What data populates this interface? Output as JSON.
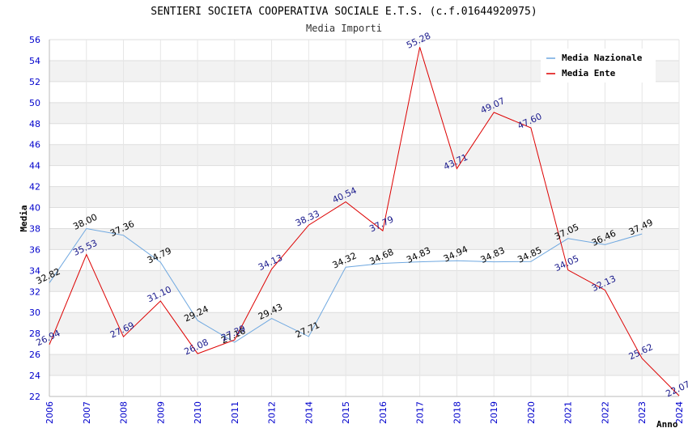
{
  "chart_data": {
    "type": "line",
    "title": "SENTIERI SOCIETA COOPERATIVA SOCIALE E.T.S. (c.f.01644920975)",
    "subtitle": "Media Importi",
    "xlabel": "Anno",
    "ylabel": "Media",
    "ylim": [
      22,
      56
    ],
    "ytick_step": 2,
    "grid": true,
    "legend_position": "top-right",
    "categories": [
      "2006",
      "2007",
      "2008",
      "2009",
      "2010",
      "2011",
      "2012",
      "2014",
      "2015",
      "2016",
      "2017",
      "2018",
      "2019",
      "2020",
      "2021",
      "2022",
      "2023",
      "2024"
    ],
    "series": [
      {
        "name": "Media Nazionale",
        "color": "#6fa8e0",
        "label_color": "#000000",
        "values": [
          32.82,
          38.0,
          37.36,
          34.79,
          29.24,
          27.16,
          29.43,
          27.71,
          34.32,
          34.68,
          34.83,
          34.94,
          34.83,
          34.85,
          37.05,
          36.46,
          37.49,
          null
        ],
        "labels": [
          "32.82",
          "38.00",
          "37.36",
          "34.79",
          "29.24",
          "27.16",
          "29.43",
          "27.71",
          "34.32",
          "34.68",
          "34.83",
          "34.94",
          "34.83",
          "34.85",
          "37.05",
          "36.46",
          "37.49",
          null
        ]
      },
      {
        "name": "Media Ente",
        "color": "#dd0000",
        "label_color": "#1a1a8c",
        "values": [
          26.94,
          35.53,
          27.69,
          31.1,
          26.08,
          27.39,
          34.13,
          38.33,
          40.54,
          37.79,
          55.28,
          43.71,
          49.07,
          47.6,
          34.05,
          32.13,
          25.62,
          22.07
        ],
        "labels": [
          "26.94",
          "35.53",
          "27.69",
          "31.10",
          "26.08",
          "27.39",
          "34.13",
          "38.33",
          "40.54",
          "37.79",
          "55.28",
          "43.71",
          "49.07",
          "47.60",
          "34.05",
          "32.13",
          "25.62",
          "22.07"
        ]
      }
    ]
  }
}
